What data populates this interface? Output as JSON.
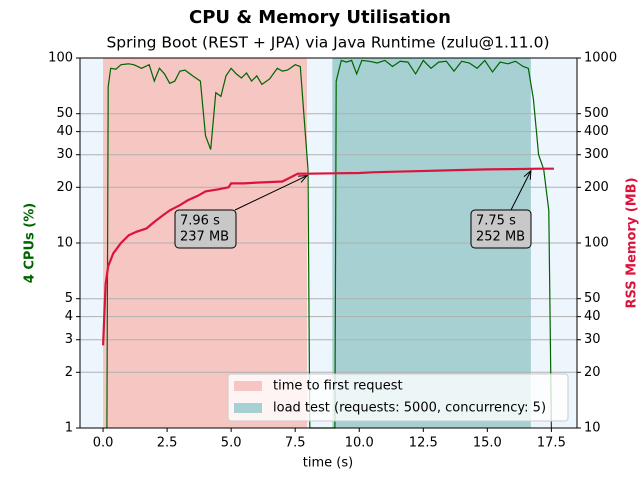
{
  "chart_data": {
    "type": "line",
    "title": "CPU & Memory Utilisation",
    "subtitle": "Spring Boot (REST + JPA) via Java Runtime (zulu@1.11.0)",
    "x_label": "time (s)",
    "y_label": "4 CPUs (%)",
    "y2_label": "RSS Memory (MB)",
    "y_label_color": "#006400",
    "y2_label_color": "#dc143c",
    "background": "#eef6fd",
    "log_y": true,
    "log_y2": true,
    "grid": true,
    "legend_position": "lower right",
    "xlim": [
      -0.9,
      18.5
    ],
    "xticks": [
      {
        "value": 0,
        "label": "0.0"
      },
      {
        "value": 2.5,
        "label": "2.5"
      },
      {
        "value": 5,
        "label": "5.0"
      },
      {
        "value": 7.5,
        "label": "7.5"
      },
      {
        "value": 10,
        "label": "10.0"
      },
      {
        "value": 12.5,
        "label": "12.5"
      },
      {
        "value": 15,
        "label": "15.0"
      },
      {
        "value": 17.5,
        "label": "17.5"
      }
    ],
    "ylim": [
      1,
      100
    ],
    "yticks": [
      1,
      2,
      3,
      4,
      5,
      10,
      20,
      30,
      40,
      50,
      100
    ],
    "y2lim": [
      10,
      1000
    ],
    "y2ticks": [
      10,
      20,
      30,
      40,
      50,
      100,
      200,
      300,
      400,
      500,
      1000
    ],
    "spans": [
      {
        "name": "time to first request",
        "color": "#f5c6c2",
        "start": 0,
        "end": 7.96
      },
      {
        "name": "load test (requests: 5000, concurrency: 5)",
        "color": "#a6d0d2",
        "start": 8.95,
        "end": 16.7
      }
    ],
    "series": [
      {
        "color": "#006400",
        "axis": "y",
        "x": [
          0.15,
          0.2,
          0.3,
          0.5,
          0.7,
          1.0,
          1.2,
          1.5,
          1.8,
          2.0,
          2.2,
          2.4,
          2.6,
          2.8,
          3.0,
          3.2,
          3.5,
          3.8,
          4.0,
          4.2,
          4.4,
          4.6,
          4.8,
          5.0,
          5.2,
          5.4,
          5.6,
          5.8,
          6.0,
          6.2,
          6.5,
          6.8,
          7.0,
          7.2,
          7.5,
          7.7,
          8.0,
          8.07,
          9.05,
          9.1,
          9.3,
          9.5,
          9.7,
          9.9,
          10.1,
          10.4,
          10.7,
          11.0,
          11.3,
          11.6,
          11.9,
          12.2,
          12.5,
          12.8,
          13.1,
          13.4,
          13.7,
          14.0,
          14.3,
          14.6,
          14.9,
          15.2,
          15.5,
          15.8,
          16.1,
          16.4,
          16.6,
          16.8,
          17.0,
          17.2,
          17.4,
          17.5
        ],
        "values": [
          1,
          70,
          88,
          87,
          92,
          93,
          92,
          88,
          92,
          75,
          88,
          82,
          73,
          75,
          85,
          86,
          80,
          75,
          38,
          32,
          65,
          62,
          80,
          88,
          82,
          78,
          83,
          75,
          80,
          72,
          77,
          88,
          85,
          86,
          92,
          90,
          25,
          1,
          1,
          75,
          97,
          95,
          97,
          82,
          97,
          96,
          94,
          97,
          90,
          96,
          95,
          82,
          97,
          88,
          95,
          96,
          85,
          96,
          94,
          88,
          97,
          84,
          95,
          93,
          96,
          90,
          88,
          60,
          30,
          25,
          15,
          1
        ]
      },
      {
        "color": "#dc143c",
        "axis": "y2",
        "x": [
          0,
          0.1,
          0.2,
          0.4,
          0.7,
          1.0,
          1.3,
          1.7,
          2.0,
          2.3,
          2.6,
          3.0,
          3.3,
          3.7,
          4.0,
          4.5,
          4.9,
          5.0,
          5.5,
          6.0,
          7.0,
          7.6,
          8.0,
          9.0,
          10.0,
          10.5,
          12.0,
          14.0,
          15.0,
          16.0,
          17.0,
          17.6
        ],
        "values": [
          28,
          60,
          75,
          88,
          100,
          110,
          115,
          120,
          130,
          140,
          150,
          160,
          170,
          180,
          190,
          195,
          200,
          210,
          210,
          212,
          215,
          237,
          237,
          238,
          239,
          241,
          244,
          248,
          250,
          251,
          252,
          252
        ]
      }
    ],
    "annotations": [
      {
        "lines": [
          "7.96 s",
          "237 MB"
        ],
        "x": 7.96,
        "y": 237
      },
      {
        "lines": [
          "7.75 s",
          "252 MB"
        ],
        "x": 16.7,
        "y": 252
      }
    ]
  }
}
